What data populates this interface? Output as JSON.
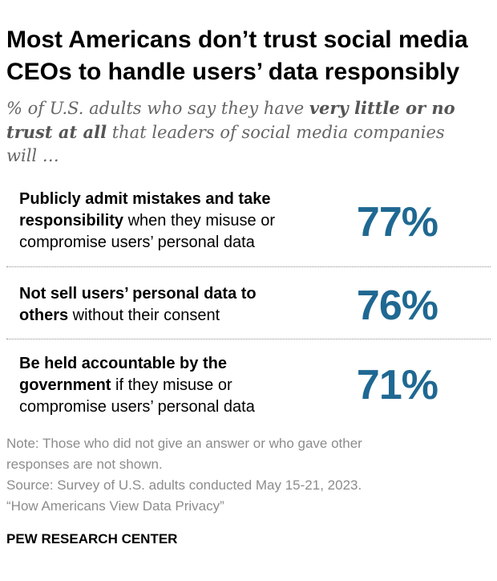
{
  "title": {
    "line1": "Most Americans don’t trust social media",
    "line2": "CEOs to handle users’ data responsibly"
  },
  "subtitle": {
    "line1_a": "% of U.S. adults who say they have ",
    "line1_b": "very little or no",
    "line2_a": "trust at all",
    "line2_b": " that leaders of social media companies",
    "line3": "will …"
  },
  "rows": [
    {
      "l1": "Publicly admit mistakes and take",
      "l2_bold": "responsibility",
      "l2_rest": " when they misuse or",
      "l3": "compromise users’ personal data",
      "value_label": "77%"
    },
    {
      "l1": "Not sell users’ personal data to",
      "l2_bold": "others",
      "l2_rest": " without their consent",
      "value_label": "76%"
    },
    {
      "l1": "Be held accountable by the",
      "l2_bold": "government",
      "l2_rest": " if they misuse or",
      "l3": "compromise users’ personal data",
      "value_label": "71%"
    }
  ],
  "notes": {
    "note1": "Note: Those who did not give an answer or who gave other",
    "note2": "responses are not shown.",
    "source": "Source: Survey of U.S. adults conducted May 15-21, 2023.",
    "report": "“How Americans View Data Privacy”"
  },
  "brand": "PEW RESEARCH CENTER",
  "colors": {
    "value": "#1f6892",
    "note": "#8c8c8c",
    "subtitle": "#666666"
  },
  "chart_data": {
    "type": "table",
    "title": "Most Americans don’t trust social media CEOs to handle users’ data responsibly",
    "subtitle": "% of U.S. adults who say they have very little or no trust at all that leaders of social media companies will …",
    "categories": [
      "Publicly admit mistakes and take responsibility when they misuse or compromise users’ personal data",
      "Not sell users’ personal data to others without their consent",
      "Be held accountable by the government if they misuse or compromise users’ personal data"
    ],
    "values": [
      77,
      76,
      71
    ],
    "unit": "%"
  }
}
